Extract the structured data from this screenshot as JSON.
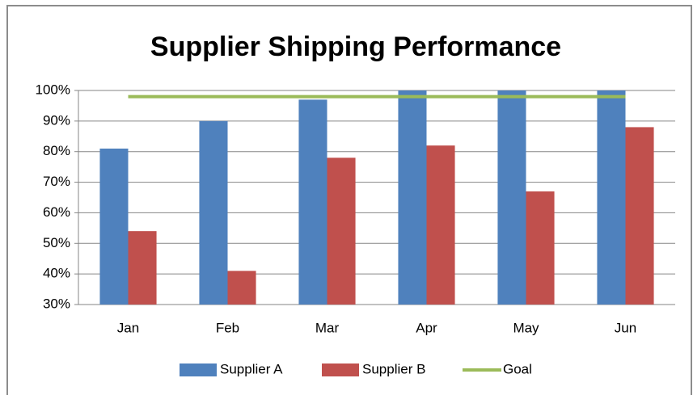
{
  "chart_data": {
    "type": "bar",
    "title": "Supplier Shipping Performance",
    "categories": [
      "Jan",
      "Feb",
      "Mar",
      "Apr",
      "May",
      "Jun"
    ],
    "series": [
      {
        "name": "Supplier A",
        "color": "#4f81bd",
        "values": [
          81,
          90,
          97,
          100,
          100,
          100
        ]
      },
      {
        "name": "Supplier B",
        "color": "#c0504d",
        "values": [
          54,
          41,
          78,
          82,
          67,
          88
        ]
      },
      {
        "name": "Goal",
        "type": "line",
        "color": "#9bbb59",
        "values": [
          98,
          98,
          98,
          98,
          98,
          98
        ]
      }
    ],
    "ylim": [
      30,
      100
    ],
    "yticks": [
      {
        "value": 30,
        "label": "30%"
      },
      {
        "value": 40,
        "label": "40%"
      },
      {
        "value": 50,
        "label": "50%"
      },
      {
        "value": 60,
        "label": "60%"
      },
      {
        "value": 70,
        "label": "70%"
      },
      {
        "value": 80,
        "label": "80%"
      },
      {
        "value": 90,
        "label": "90%"
      },
      {
        "value": 100,
        "label": "100%"
      }
    ],
    "grid": true,
    "legend": "bottom"
  }
}
